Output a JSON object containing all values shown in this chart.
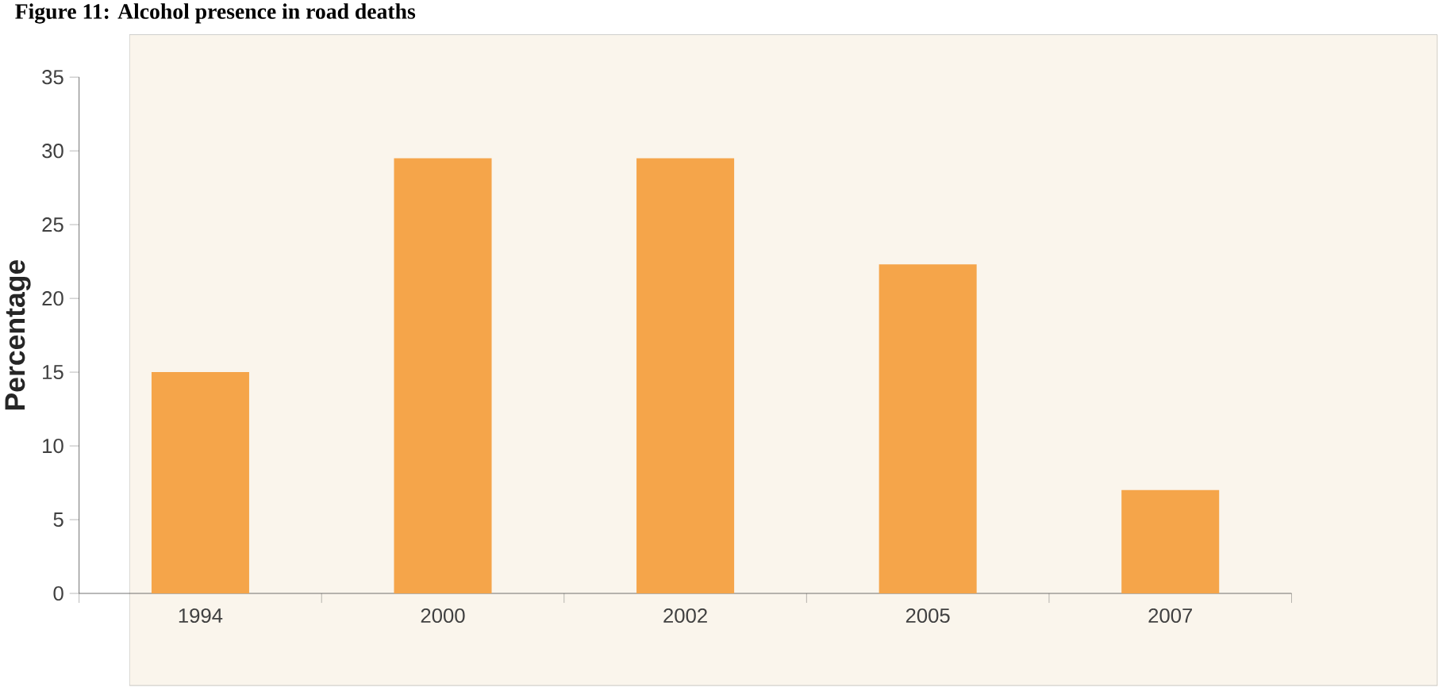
{
  "chart_data": {
    "type": "bar",
    "title": "Figure 11: Alcohol presence in road deaths",
    "ylabel": "Percentage",
    "categories": [
      "1994",
      "2000",
      "2002",
      "2005",
      "2007"
    ],
    "values": [
      15,
      29.5,
      29.5,
      22.3,
      7
    ],
    "color": "#f5a54a",
    "ylim": [
      0,
      35
    ],
    "yticks": [
      0,
      5,
      10,
      15,
      20,
      25,
      30,
      35
    ],
    "grid": false
  }
}
